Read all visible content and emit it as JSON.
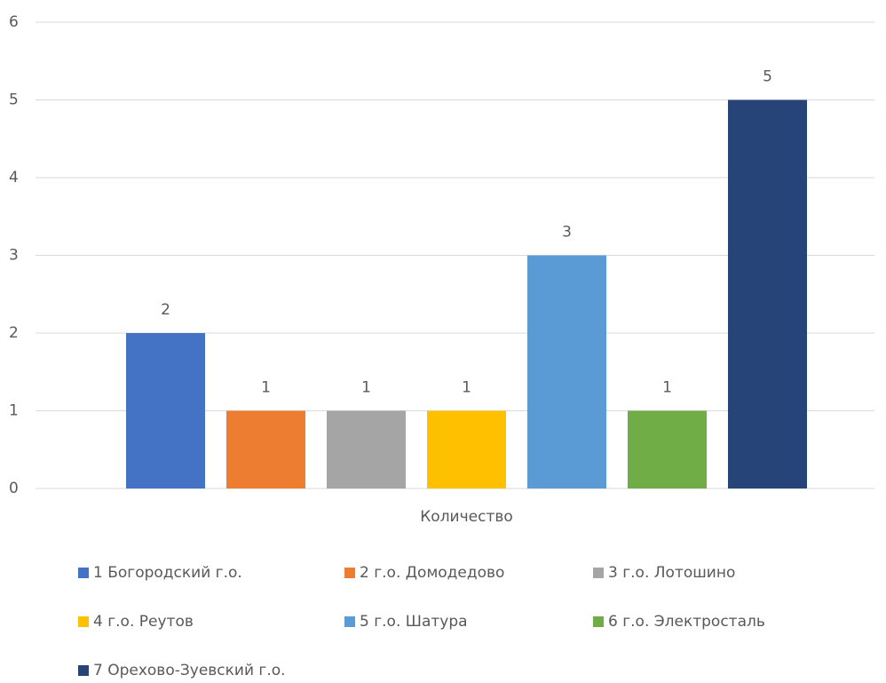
{
  "chart_data": {
    "type": "bar",
    "categories": [
      "Количество"
    ],
    "series": [
      {
        "name": "1 Богородский г.о.",
        "color": "#4472c4",
        "values": [
          2
        ]
      },
      {
        "name": "2 г.о. Домодедово",
        "color": "#ed7d31",
        "values": [
          1
        ]
      },
      {
        "name": "3 г.о. Лотошино",
        "color": "#a5a5a5",
        "values": [
          1
        ]
      },
      {
        "name": "4 г.о. Реутов",
        "color": "#ffc000",
        "values": [
          1
        ]
      },
      {
        "name": "5 г.о. Шатура",
        "color": "#5b9bd5",
        "values": [
          3
        ]
      },
      {
        "name": "6 г.о. Электросталь",
        "color": "#70ad47",
        "values": [
          1
        ]
      },
      {
        "name": "7 Орехово-Зуевский г.о.",
        "color": "#264478",
        "values": [
          5
        ]
      }
    ],
    "ylim": [
      0,
      6
    ],
    "yticks": [
      0,
      1,
      2,
      3,
      4,
      5,
      6
    ],
    "grid": true,
    "legend": "bottom"
  }
}
